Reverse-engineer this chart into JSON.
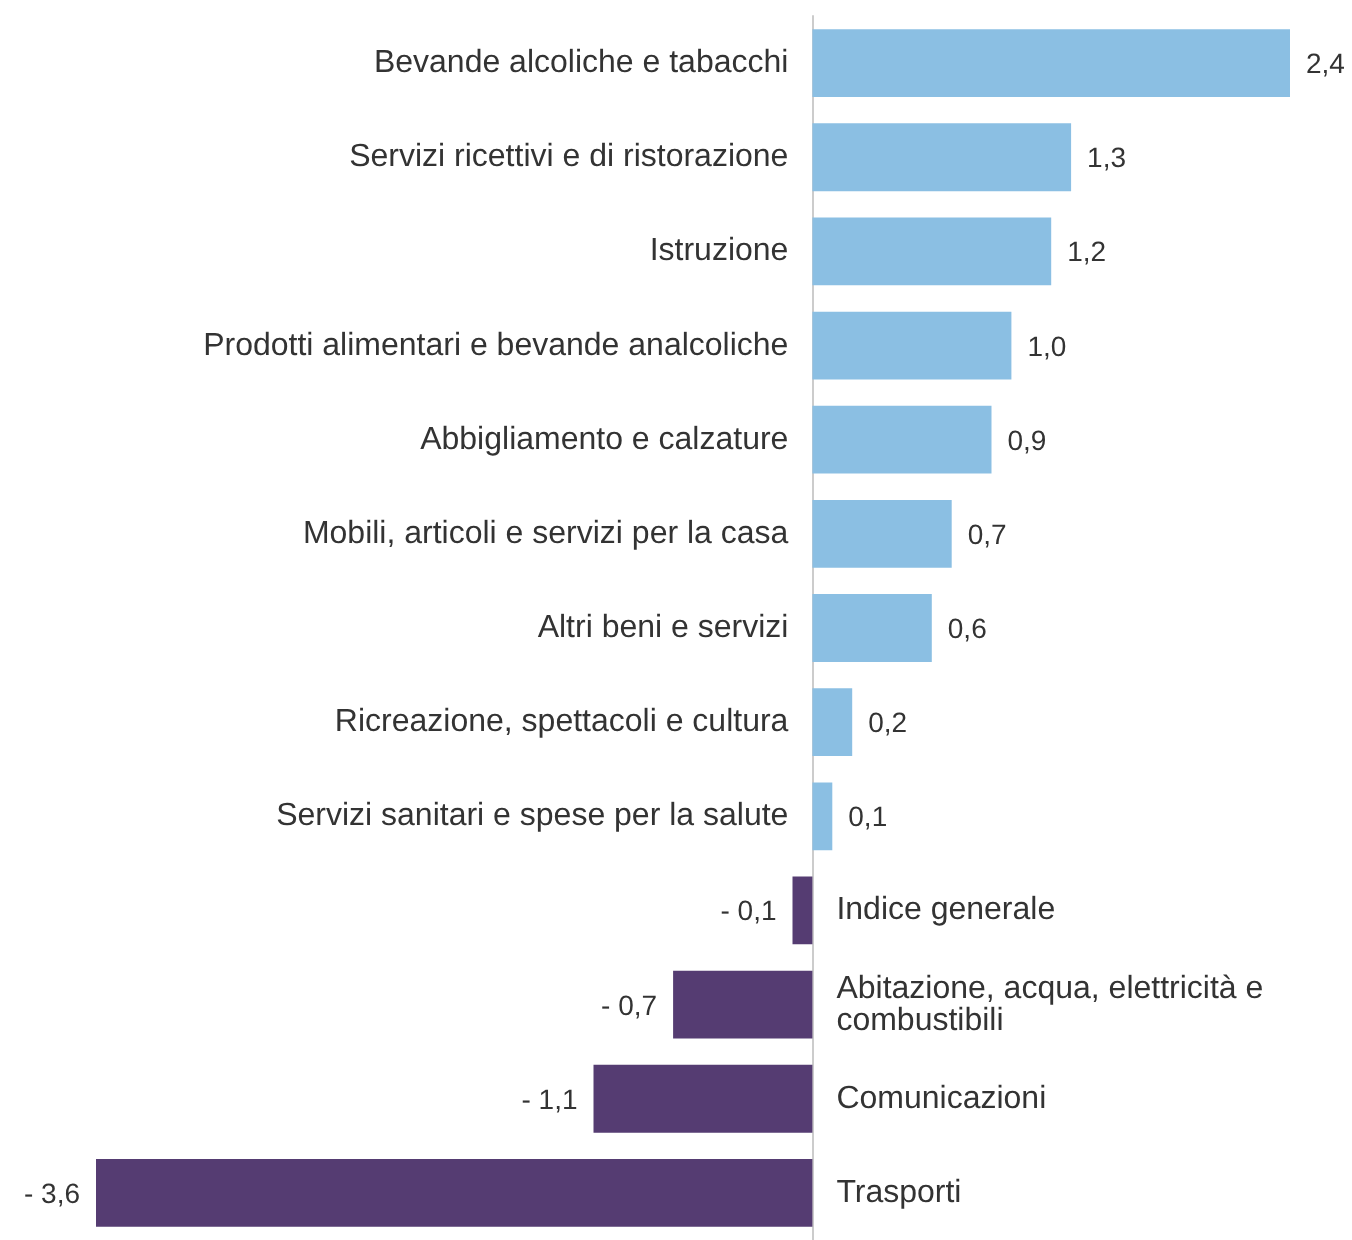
{
  "chart_data": {
    "type": "bar",
    "orientation": "horizontal",
    "categories": [
      "Bevande alcoliche e tabacchi",
      "Servizi ricettivi e di ristorazione",
      "Istruzione",
      "Prodotti alimentari e bevande analcoliche",
      "Abbigliamento e calzature",
      "Mobili, articoli e servizi per la casa",
      "Altri beni e servizi",
      "Ricreazione, spettacoli e cultura",
      "Servizi sanitari e spese per la salute",
      "Indice generale",
      "Abitazione, acqua, elettricità e combustibili",
      "Comunicazioni",
      "Trasporti"
    ],
    "values": [
      2.4,
      1.3,
      1.2,
      1.0,
      0.9,
      0.7,
      0.6,
      0.2,
      0.1,
      -0.1,
      -0.7,
      -1.1,
      -3.6
    ],
    "value_labels": [
      "2,4",
      "1,3",
      "1,2",
      "1,0",
      "0,9",
      "0,7",
      "0,6",
      "0,2",
      "0,1",
      "- 0,1",
      "- 0,7",
      "- 1,1",
      "- 3,6"
    ],
    "colors": [
      "#8bbfe3",
      "#8bbfe3",
      "#8bbfe3",
      "#8bbfe3",
      "#8bbfe3",
      "#8bbfe3",
      "#8bbfe3",
      "#8bbfe3",
      "#8bbfe3",
      "#553c72",
      "#553c72",
      "#553c72",
      "#553c72"
    ],
    "xlim": [
      -3.6,
      2.4
    ],
    "tick_labels": "y",
    "grid": false
  }
}
